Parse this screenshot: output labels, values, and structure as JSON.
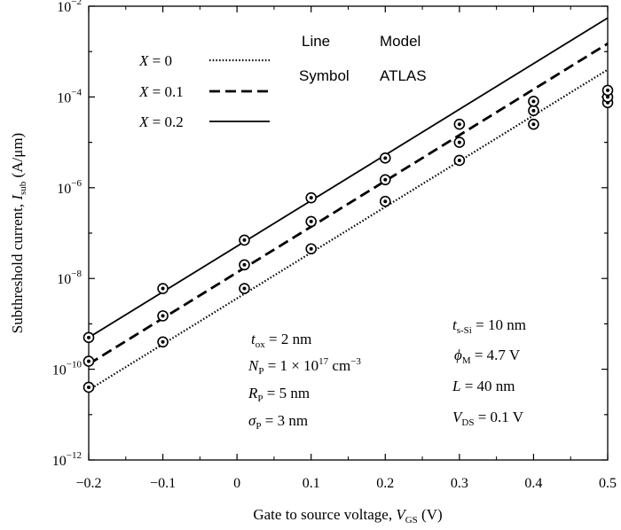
{
  "chart_data": {
    "type": "line",
    "xlabel": "Gate to source voltage, V_GS (V)",
    "ylabel": "Subthreshold current, I_sub (A/μm)",
    "x_ticks": [
      "−0.2",
      "−0.1",
      "0",
      "0.1",
      "0.2",
      "0.3",
      "0.4",
      "0.5"
    ],
    "y_ticks": [
      {
        "base": "10",
        "exp": "−12"
      },
      {
        "base": "10",
        "exp": "−10"
      },
      {
        "base": "10",
        "exp": "−8"
      },
      {
        "base": "10",
        "exp": "−6"
      },
      {
        "base": "10",
        "exp": "−4"
      },
      {
        "base": "10",
        "exp": "−2"
      }
    ],
    "xlim": [
      -0.2,
      0.5
    ],
    "ylim": [
      1e-12,
      0.01
    ],
    "yscale": "log",
    "grid": false,
    "legend_header": {
      "col1": "Line",
      "col2": "Model",
      "col1b": "Symbol",
      "col2b": "ATLAS"
    },
    "series": [
      {
        "name": "X = 0",
        "style": "dotted",
        "line": {
          "x": [
            -0.2,
            0.5
          ],
          "y": [
            3.5e-11,
            0.0004
          ]
        },
        "points": {
          "x": [
            -0.2,
            -0.1,
            0.01,
            0.1,
            0.2,
            0.3,
            0.4,
            0.5
          ],
          "y": [
            4e-11,
            4e-10,
            6e-09,
            4.5e-08,
            5e-07,
            4e-06,
            2.5e-05,
            7.5e-05
          ]
        }
      },
      {
        "name": "X = 0.1",
        "style": "dashed",
        "line": {
          "x": [
            -0.2,
            0.5
          ],
          "y": [
            1.3e-10,
            0.0015
          ]
        },
        "points": {
          "x": [
            -0.2,
            -0.1,
            0.01,
            0.1,
            0.2,
            0.3,
            0.4,
            0.5
          ],
          "y": [
            1.5e-10,
            1.5e-09,
            2e-08,
            1.8e-07,
            1.5e-06,
            1e-05,
            5e-05,
            0.0001
          ]
        }
      },
      {
        "name": "X = 0.2",
        "style": "solid",
        "line": {
          "x": [
            -0.2,
            0.5
          ],
          "y": [
            5e-10,
            0.0055
          ]
        },
        "points": {
          "x": [
            -0.2,
            -0.1,
            0.01,
            0.1,
            0.2,
            0.3,
            0.4,
            0.5
          ],
          "y": [
            5e-10,
            6e-09,
            7e-08,
            6e-07,
            4.5e-06,
            2.5e-05,
            8e-05,
            0.00014
          ]
        }
      }
    ]
  },
  "legend": {
    "items": [
      {
        "var": "X",
        "value": "= 0"
      },
      {
        "var": "X",
        "value": "= 0.1"
      },
      {
        "var": "X",
        "value": "= 0.2"
      }
    ]
  },
  "params_left": {
    "tox": {
      "sym": "t",
      "sub": "ox",
      "text": " = 2 nm"
    },
    "np": {
      "sym": "N",
      "sub": "P",
      "text": " = 1 × 10",
      "sup": "17",
      "unit": " cm",
      "unit_sup": "−3"
    },
    "rp": {
      "sym": "R",
      "sub": "P",
      "text": " = 5 nm"
    },
    "sp": {
      "sym": "σ",
      "sub": "P",
      "text": " = 3 nm"
    }
  },
  "params_right": {
    "tssi": {
      "sym": "t",
      "sub": "s-Si",
      "text": " = 10 nm"
    },
    "phim": {
      "sym": "ϕ",
      "sub": "M",
      "text": " = 4.7 V"
    },
    "len": {
      "sym": "L",
      "text": " = 40 nm"
    },
    "vds": {
      "sym": "V",
      "sub": "DS",
      "text": " = 0.1 V"
    }
  },
  "axis_text": {
    "x_main": "Gate to source voltage, ",
    "x_var": "V",
    "x_sub": "GS",
    "x_unit": " (V)",
    "y_main": "Subthreshold current, ",
    "y_var": "I",
    "y_sub": "sub",
    "y_unit": " (A/μm)"
  }
}
